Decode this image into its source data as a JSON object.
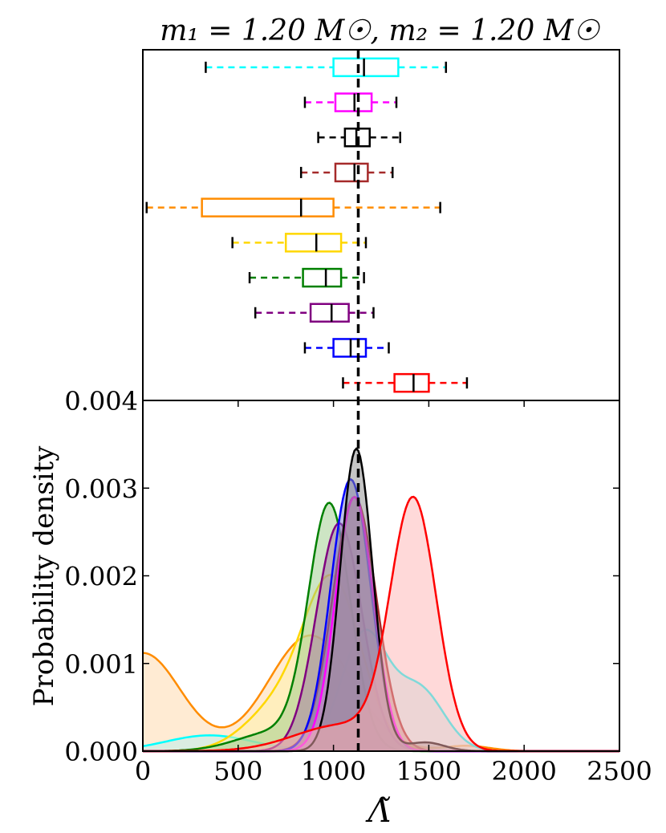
{
  "title": "m₁ = 1.20 M☉, m₂ = 1.20 M☉",
  "chart_data": [
    {
      "type": "box",
      "x_range": [
        0,
        2500
      ],
      "reference_line": 1130,
      "boxes": [
        {
          "color": "#00ffff",
          "whisker_low": 330,
          "q1": 1000,
          "median": 1160,
          "q3": 1340,
          "whisker_high": 1590
        },
        {
          "color": "#ff00ff",
          "whisker_low": 850,
          "q1": 1010,
          "median": 1110,
          "q3": 1200,
          "whisker_high": 1330
        },
        {
          "color": "#000000",
          "whisker_low": 920,
          "q1": 1060,
          "median": 1120,
          "q3": 1190,
          "whisker_high": 1350
        },
        {
          "color": "#a52a2a",
          "whisker_low": 830,
          "q1": 1010,
          "median": 1110,
          "q3": 1180,
          "whisker_high": 1310
        },
        {
          "color": "#ff8c00",
          "whisker_low": 20,
          "q1": 310,
          "median": 830,
          "q3": 1000,
          "whisker_high": 1560
        },
        {
          "color": "#ffd700",
          "whisker_low": 470,
          "q1": 750,
          "median": 910,
          "q3": 1040,
          "whisker_high": 1170
        },
        {
          "color": "#008000",
          "whisker_low": 560,
          "q1": 840,
          "median": 960,
          "q3": 1040,
          "whisker_high": 1160
        },
        {
          "color": "#800080",
          "whisker_low": 590,
          "q1": 880,
          "median": 990,
          "q3": 1080,
          "whisker_high": 1210
        },
        {
          "color": "#0000ff",
          "whisker_low": 850,
          "q1": 1000,
          "median": 1090,
          "q3": 1170,
          "whisker_high": 1290
        },
        {
          "color": "#ff0000",
          "whisker_low": 1050,
          "q1": 1320,
          "median": 1420,
          "q3": 1500,
          "whisker_high": 1700
        }
      ]
    },
    {
      "type": "area",
      "xlabel": "Λ̃",
      "ylabel": "Probability density",
      "xlim": [
        0,
        2500
      ],
      "ylim": [
        0,
        0.004
      ],
      "x_ticks": [
        "0",
        "500",
        "1000",
        "1500",
        "2000",
        "2500"
      ],
      "y_ticks": [
        "0.000",
        "0.001",
        "0.002",
        "0.003",
        "0.004"
      ],
      "reference_line": 1130,
      "series": [
        {
          "color": "#ff8c00",
          "fill": "#ffd8a8",
          "components": [
            {
              "mu": 0,
              "sigma": 200,
              "amp": 0.00112
            },
            {
              "mu": 880,
              "sigma": 220,
              "amp": 0.00132
            },
            {
              "mu": 1700,
              "sigma": 120,
              "amp": 6e-05
            }
          ]
        },
        {
          "color": "#00ffff",
          "fill": "#b8f0f0",
          "components": [
            {
              "mu": 1160,
              "sigma": 120,
              "amp": 0.00132
            },
            {
              "mu": 1450,
              "sigma": 130,
              "amp": 0.0007
            },
            {
              "mu": 350,
              "sigma": 230,
              "amp": 0.00018
            }
          ]
        },
        {
          "color": "#ffd700",
          "fill": "#fff1a8",
          "components": [
            {
              "mu": 1000,
              "sigma": 150,
              "amp": 0.00185
            },
            {
              "mu": 720,
              "sigma": 180,
              "amp": 0.0005
            }
          ]
        },
        {
          "color": "#008000",
          "fill": "#9ccb8a",
          "components": [
            {
              "mu": 980,
              "sigma": 110,
              "amp": 0.00275
            },
            {
              "mu": 700,
              "sigma": 200,
              "amp": 0.00022
            }
          ]
        },
        {
          "color": "#800080",
          "fill": "#a57aa5",
          "components": [
            {
              "mu": 1030,
              "sigma": 120,
              "amp": 0.0026
            }
          ]
        },
        {
          "color": "#a52a2a",
          "fill": "#b5706a",
          "components": [
            {
              "mu": 1110,
              "sigma": 115,
              "amp": 0.0029
            }
          ]
        },
        {
          "color": "#0000ff",
          "fill": "#7b7fd0",
          "components": [
            {
              "mu": 1090,
              "sigma": 105,
              "amp": 0.0031
            }
          ]
        },
        {
          "color": "#ff00ff",
          "fill": "#d890d8",
          "components": [
            {
              "mu": 1110,
              "sigma": 100,
              "amp": 0.0029
            }
          ]
        },
        {
          "color": "#000000",
          "fill": "#8c8c8c",
          "components": [
            {
              "mu": 1120,
              "sigma": 85,
              "amp": 0.00345
            },
            {
              "mu": 1480,
              "sigma": 100,
              "amp": 0.0001
            }
          ]
        },
        {
          "color": "#ff0000",
          "fill": "#ffb3b3",
          "components": [
            {
              "mu": 1420,
              "sigma": 120,
              "amp": 0.0028
            },
            {
              "mu": 1050,
              "sigma": 250,
              "amp": 0.0003
            }
          ]
        }
      ]
    }
  ]
}
